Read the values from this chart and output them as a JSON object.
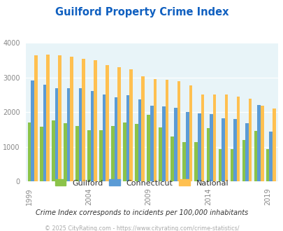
{
  "title": "Guilford Property Crime Index",
  "subtitle": "Crime Index corresponds to incidents per 100,000 inhabitants",
  "footer": "© 2025 CityRating.com - https://www.cityrating.com/crime-statistics/",
  "years": [
    1999,
    2000,
    2001,
    2002,
    2003,
    2004,
    2005,
    2006,
    2007,
    2008,
    2009,
    2010,
    2011,
    2012,
    2013,
    2014,
    2015,
    2016,
    2017,
    2018,
    2019
  ],
  "guilford": [
    1700,
    1570,
    1760,
    1680,
    1590,
    1480,
    1480,
    1590,
    1700,
    1650,
    1920,
    1560,
    1300,
    1140,
    1140,
    1530,
    940,
    940,
    1190,
    1460,
    940
  ],
  "connecticut": [
    2920,
    2780,
    2680,
    2680,
    2680,
    2600,
    2510,
    2420,
    2480,
    2360,
    2180,
    2160,
    2120,
    2010,
    1960,
    1950,
    1820,
    1800,
    1680,
    2200,
    1430
  ],
  "national": [
    3640,
    3660,
    3640,
    3600,
    3530,
    3490,
    3350,
    3300,
    3230,
    3040,
    2960,
    2940,
    2880,
    2760,
    2510,
    2510,
    2500,
    2450,
    2390,
    2190,
    2100
  ],
  "guilford_color": "#8bc34a",
  "connecticut_color": "#5b9bd5",
  "national_color": "#ffc050",
  "bg_color": "#e8f4f8",
  "title_color": "#1060c0",
  "subtitle_color": "#333333",
  "footer_color": "#aaaaaa",
  "ylim": [
    0,
    4000
  ],
  "yticks": [
    0,
    1000,
    2000,
    3000,
    4000
  ],
  "label_years": [
    1999,
    2004,
    2009,
    2014,
    2019
  ]
}
